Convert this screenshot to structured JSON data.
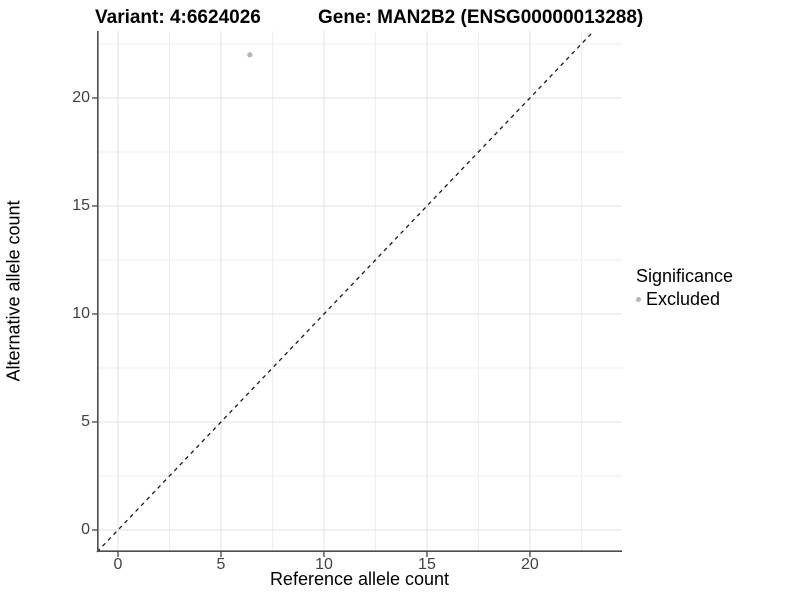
{
  "chart_data": {
    "type": "scatter",
    "titles": {
      "left": "Variant: 4:6624026",
      "right": "Gene: MAN2B2 (ENSG00000013288)"
    },
    "xlabel": "Reference allele count",
    "ylabel": "Alternative allele count",
    "x_ticks": [
      0,
      5,
      10,
      15,
      20
    ],
    "y_ticks": [
      0,
      5,
      10,
      15,
      20
    ],
    "x_minor_ticks": [
      2.5,
      7.5,
      12.5,
      17.5,
      22.5
    ],
    "y_minor_ticks": [
      2.5,
      7.5,
      12.5,
      17.5,
      22.5
    ],
    "xlim": [
      -1.02,
      24.47
    ],
    "ylim": [
      -1.02,
      23.1
    ],
    "grid": true,
    "points": [
      {
        "x": 6.4,
        "y": 22,
        "series": "Excluded"
      }
    ],
    "reference_line": {
      "type": "identity",
      "equation": "y = x",
      "style": "dashed"
    },
    "legend": {
      "title": "Significance",
      "position": "right",
      "items": [
        {
          "label": "Excluded",
          "marker": "circle",
          "color": "#b5b5b5"
        }
      ]
    },
    "colors": {
      "point": "#b5b5b5",
      "grid_major": "#e2e2e2",
      "grid_minor": "#eeeeee",
      "axis_line": "#4d4d4d",
      "tick_mark": "#333333",
      "reference_line": "#1a1a1a",
      "tick_label": "#424242",
      "title": "#000000"
    }
  }
}
